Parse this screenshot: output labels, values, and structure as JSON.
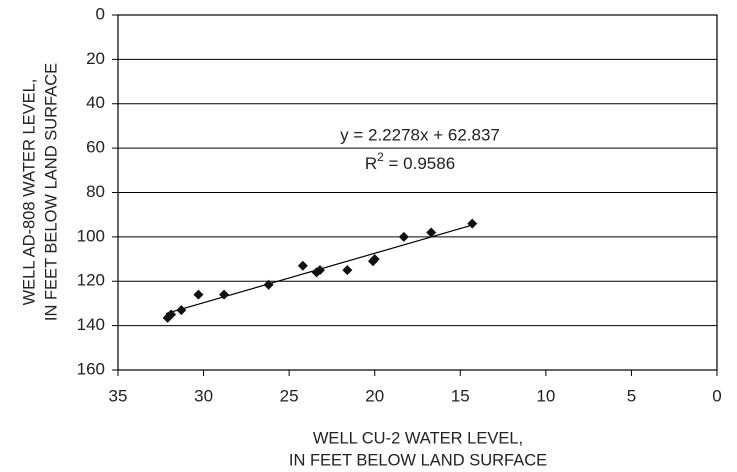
{
  "chart_data": {
    "type": "scatter",
    "x_label": [
      "WELL CU-2 WATER LEVEL,",
      "IN FEET BELOW LAND SURFACE"
    ],
    "y_label": [
      "WELL AD-808 WATER LEVEL,",
      "IN FEET BELOW LAND SURFACE"
    ],
    "annotations": [
      "y = 2.2278x + 62.837",
      {
        "base": "R",
        "sup": "2",
        "rest": " = 0.9586"
      }
    ],
    "x": [
      32.1,
      31.9,
      31.3,
      30.3,
      28.8,
      26.2,
      24.2,
      23.4,
      23.2,
      21.6,
      20.1,
      20.0,
      18.3,
      16.7,
      14.3
    ],
    "values": [
      136.5,
      135,
      133,
      126,
      126,
      121.6,
      113,
      116,
      115,
      115,
      111,
      110,
      100,
      98,
      94
    ],
    "color": "#111111",
    "trendline": {
      "slope": 2.2278,
      "intercept": 62.837,
      "xrange": [
        32.2,
        14.3
      ]
    },
    "xlim": [
      35,
      0
    ],
    "xticks": [
      35,
      30,
      25,
      20,
      15,
      10,
      5,
      0
    ],
    "ylim": [
      160,
      0
    ],
    "yticks": [
      0,
      20,
      40,
      60,
      80,
      100,
      120,
      140,
      160
    ],
    "grid": true
  }
}
